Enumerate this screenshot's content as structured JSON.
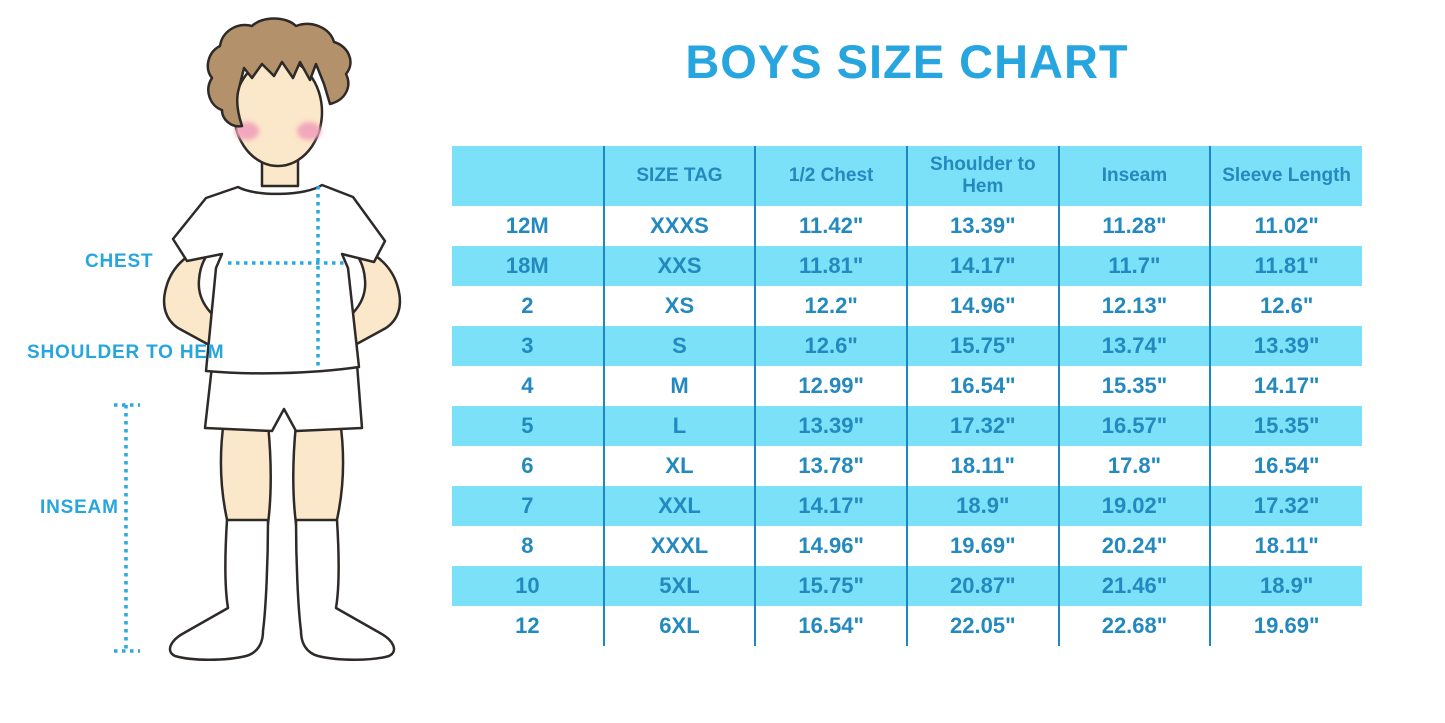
{
  "page": {
    "title": "BOYS SIZE CHART"
  },
  "colors": {
    "accent_blue": "#27A5DE",
    "table_cyan": "#7AE1F9",
    "table_text": "#2389BE",
    "table_divider": "#1F86C4"
  },
  "figure": {
    "labels": {
      "chest": "CHEST",
      "shoulder_to_hem": "SHOULDER TO HEM",
      "inseam": "INSEAM"
    }
  },
  "table": {
    "columns": [
      "",
      "SIZE TAG",
      "1/2 Chest",
      "Shoulder to Hem",
      "Inseam",
      "Sleeve Length"
    ],
    "rows": [
      [
        "12M",
        "XXXS",
        "11.42\"",
        "13.39\"",
        "11.28\"",
        "11.02\""
      ],
      [
        "18M",
        "XXS",
        "11.81\"",
        "14.17\"",
        "11.7\"",
        "11.81\""
      ],
      [
        "2",
        "XS",
        "12.2\"",
        "14.96\"",
        "12.13\"",
        "12.6\""
      ],
      [
        "3",
        "S",
        "12.6\"",
        "15.75\"",
        "13.74\"",
        "13.39\""
      ],
      [
        "4",
        "M",
        "12.99\"",
        "16.54\"",
        "15.35\"",
        "14.17\""
      ],
      [
        "5",
        "L",
        "13.39\"",
        "17.32\"",
        "16.57\"",
        "15.35\""
      ],
      [
        "6",
        "XL",
        "13.78\"",
        "18.11\"",
        "17.8\"",
        "16.54\""
      ],
      [
        "7",
        "XXL",
        "14.17\"",
        "18.9\"",
        "19.02\"",
        "17.32\""
      ],
      [
        "8",
        "XXXL",
        "14.96\"",
        "19.69\"",
        "20.24\"",
        "18.11\""
      ],
      [
        "10",
        "5XL",
        "15.75\"",
        "20.87\"",
        "21.46\"",
        "18.9\""
      ],
      [
        "12",
        "6XL",
        "16.54\"",
        "22.05\"",
        "22.68\"",
        "19.69\""
      ]
    ]
  }
}
